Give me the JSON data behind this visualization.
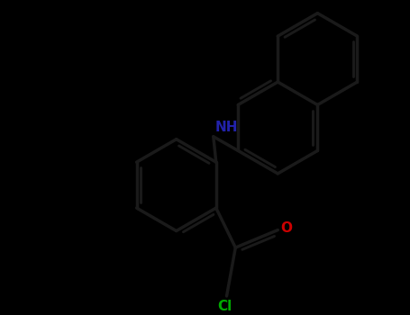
{
  "bg_color": "#000000",
  "bond_color": "#1a1a1a",
  "N_color": "#2222aa",
  "O_color": "#cc0000",
  "Cl_color": "#00aa00",
  "bond_width": 2.5,
  "label_fontsize": 11,
  "figsize": [
    4.55,
    3.5
  ],
  "dpi": 100,
  "xlim": [
    0,
    455
  ],
  "ylim": [
    0,
    350
  ]
}
